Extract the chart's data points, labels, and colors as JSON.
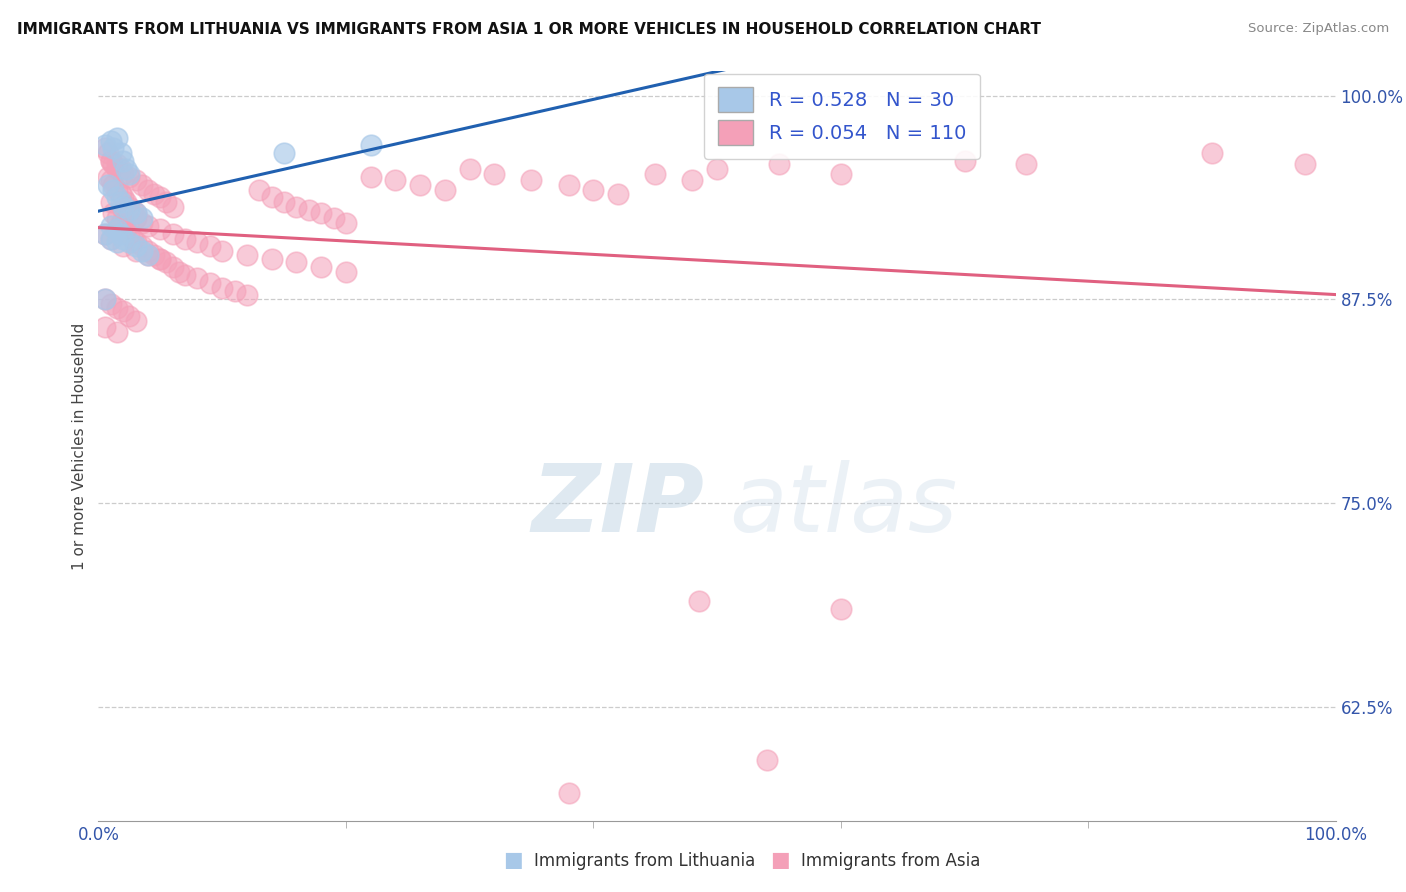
{
  "title": "IMMIGRANTS FROM LITHUANIA VS IMMIGRANTS FROM ASIA 1 OR MORE VEHICLES IN HOUSEHOLD CORRELATION CHART",
  "source": "Source: ZipAtlas.com",
  "ylabel": "1 or more Vehicles in Household",
  "R_blue": 0.528,
  "N_blue": 30,
  "R_pink": 0.054,
  "N_pink": 110,
  "blue_color": "#a8c8e8",
  "pink_color": "#f4a0b8",
  "blue_line_color": "#2060b0",
  "pink_line_color": "#e06080",
  "background_color": "#ffffff",
  "watermark_left": "ZIP",
  "watermark_right": "atlas",
  "legend_label_blue": "Immigrants from Lithuania",
  "legend_label_pink": "Immigrants from Asia",
  "ytick_values": [
    1.0,
    0.875,
    0.75,
    0.625
  ],
  "ytick_labels": [
    "100.0%",
    "87.5%",
    "75.0%",
    "62.5%"
  ],
  "xlim": [
    0.0,
    1.0
  ],
  "ylim": [
    0.555,
    1.015
  ],
  "blue_scatter_x": [
    0.005,
    0.01,
    0.012,
    0.015,
    0.018,
    0.02,
    0.022,
    0.025,
    0.008,
    0.012,
    0.015,
    0.018,
    0.02,
    0.025,
    0.03,
    0.035,
    0.01,
    0.015,
    0.018,
    0.02,
    0.025,
    0.03,
    0.035,
    0.04,
    0.005,
    0.01,
    0.015,
    0.005,
    0.15,
    0.22
  ],
  "blue_scatter_y": [
    0.97,
    0.972,
    0.968,
    0.974,
    0.965,
    0.96,
    0.955,
    0.952,
    0.945,
    0.942,
    0.938,
    0.935,
    0.932,
    0.93,
    0.928,
    0.925,
    0.92,
    0.918,
    0.915,
    0.912,
    0.91,
    0.908,
    0.905,
    0.902,
    0.915,
    0.912,
    0.91,
    0.875,
    0.965,
    0.97
  ],
  "pink_scatter_x": [
    0.005,
    0.008,
    0.01,
    0.012,
    0.015,
    0.008,
    0.01,
    0.012,
    0.015,
    0.018,
    0.02,
    0.022,
    0.025,
    0.028,
    0.03,
    0.01,
    0.015,
    0.018,
    0.02,
    0.025,
    0.03,
    0.035,
    0.04,
    0.045,
    0.05,
    0.055,
    0.06,
    0.012,
    0.015,
    0.018,
    0.02,
    0.022,
    0.025,
    0.028,
    0.03,
    0.035,
    0.04,
    0.045,
    0.05,
    0.055,
    0.06,
    0.065,
    0.07,
    0.08,
    0.09,
    0.1,
    0.11,
    0.12,
    0.13,
    0.14,
    0.15,
    0.16,
    0.17,
    0.18,
    0.19,
    0.2,
    0.22,
    0.24,
    0.26,
    0.28,
    0.3,
    0.32,
    0.35,
    0.38,
    0.4,
    0.42,
    0.45,
    0.48,
    0.5,
    0.55,
    0.6,
    0.01,
    0.02,
    0.025,
    0.03,
    0.035,
    0.04,
    0.05,
    0.06,
    0.07,
    0.08,
    0.09,
    0.1,
    0.12,
    0.14,
    0.16,
    0.18,
    0.2,
    0.005,
    0.01,
    0.015,
    0.02,
    0.025,
    0.03,
    0.005,
    0.015,
    0.485,
    0.6,
    0.7,
    0.75,
    0.9,
    0.975,
    0.005,
    0.01,
    0.02,
    0.03,
    0.04,
    0.05,
    0.38,
    0.54
  ],
  "pink_scatter_y": [
    0.968,
    0.965,
    0.96,
    0.958,
    0.955,
    0.95,
    0.948,
    0.945,
    0.942,
    0.94,
    0.938,
    0.935,
    0.932,
    0.93,
    0.928,
    0.96,
    0.958,
    0.955,
    0.952,
    0.95,
    0.948,
    0.945,
    0.942,
    0.94,
    0.938,
    0.935,
    0.932,
    0.928,
    0.925,
    0.922,
    0.92,
    0.918,
    0.915,
    0.912,
    0.91,
    0.908,
    0.905,
    0.902,
    0.9,
    0.898,
    0.895,
    0.892,
    0.89,
    0.888,
    0.885,
    0.882,
    0.88,
    0.878,
    0.942,
    0.938,
    0.935,
    0.932,
    0.93,
    0.928,
    0.925,
    0.922,
    0.95,
    0.948,
    0.945,
    0.942,
    0.955,
    0.952,
    0.948,
    0.945,
    0.942,
    0.94,
    0.952,
    0.948,
    0.955,
    0.958,
    0.952,
    0.935,
    0.93,
    0.928,
    0.925,
    0.922,
    0.92,
    0.918,
    0.915,
    0.912,
    0.91,
    0.908,
    0.905,
    0.902,
    0.9,
    0.898,
    0.895,
    0.892,
    0.875,
    0.872,
    0.87,
    0.868,
    0.865,
    0.862,
    0.858,
    0.855,
    0.69,
    0.685,
    0.96,
    0.958,
    0.965,
    0.958,
    0.915,
    0.912,
    0.908,
    0.905,
    0.902,
    0.9,
    0.572,
    0.592
  ]
}
